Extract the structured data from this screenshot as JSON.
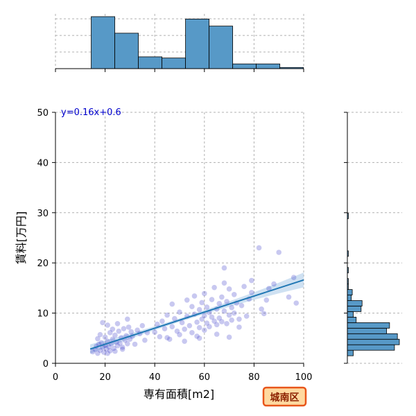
{
  "chart_data": {
    "type": "scatter",
    "xlabel": "専有面積[m2]",
    "ylabel": "賃料[万円]",
    "xlim": [
      0,
      100
    ],
    "ylim": [
      0,
      50
    ],
    "x_ticks": [
      0,
      20,
      40,
      60,
      80,
      100
    ],
    "y_ticks": [
      0,
      10,
      20,
      30,
      40,
      50
    ],
    "grid": true,
    "annotation": "y=0.16x+0.6",
    "badge": "城南区",
    "regression": {
      "slope": 0.16,
      "intercept": 0.6,
      "x_range": [
        14,
        100
      ]
    },
    "colors": {
      "points": "#3a3ac8",
      "line": "#1f77b4",
      "band": "#a8c8e8",
      "hist": "#5799c7",
      "badge_bg": "#ffd9a0",
      "badge_border": "#e8551a"
    },
    "top_histogram": {
      "bin_edges": [
        0,
        14.4,
        23.9,
        33.4,
        42.9,
        52.4,
        61.9,
        71.4,
        80.9,
        90.4,
        99.9
      ],
      "counts": [
        0,
        44,
        30,
        10,
        9,
        42,
        36,
        4,
        4,
        1
      ]
    },
    "right_histogram": {
      "bin_edges": [
        1.5,
        2.6,
        3.7,
        4.8,
        5.9,
        7.0,
        8.1,
        9.2,
        10.3,
        11.4,
        12.5,
        13.6,
        14.7,
        15.8,
        16.9,
        18.0,
        19.1,
        20.2,
        21.3,
        22.4,
        23.5,
        28.8,
        29.9
      ],
      "counts": [
        6,
        48,
        53,
        51,
        40,
        43,
        9,
        6,
        14,
        15,
        4,
        5,
        1,
        1,
        0,
        1,
        0,
        0,
        1,
        0,
        0,
        1
      ]
    },
    "points": [
      [
        15,
        2.3
      ],
      [
        16,
        2.8
      ],
      [
        16.5,
        3.4
      ],
      [
        17,
        2.0
      ],
      [
        17.5,
        3.8
      ],
      [
        18,
        2.6
      ],
      [
        18.5,
        4.1
      ],
      [
        19,
        3.2
      ],
      [
        19.5,
        2.2
      ],
      [
        20,
        3.6
      ],
      [
        20,
        5.2
      ],
      [
        20.5,
        2.9
      ],
      [
        21,
        4.4
      ],
      [
        21.5,
        3.3
      ],
      [
        22,
        2.5
      ],
      [
        22,
        6.1
      ],
      [
        22.5,
        3.9
      ],
      [
        23,
        4.8
      ],
      [
        23.5,
        3.0
      ],
      [
        24,
        5.6
      ],
      [
        24.5,
        4.2
      ],
      [
        25,
        3.5
      ],
      [
        25.5,
        6.4
      ],
      [
        26,
        4.0
      ],
      [
        26.5,
        5.1
      ],
      [
        27,
        3.2
      ],
      [
        27.5,
        6.9
      ],
      [
        28,
        4.6
      ],
      [
        28.5,
        5.5
      ],
      [
        29,
        3.9
      ],
      [
        29.5,
        7.2
      ],
      [
        30,
        4.8
      ],
      [
        30.5,
        6.3
      ],
      [
        31,
        5.4
      ],
      [
        32,
        3.8
      ],
      [
        33,
        6.6
      ],
      [
        34,
        5.9
      ],
      [
        35,
        7.5
      ],
      [
        36,
        4.6
      ],
      [
        37,
        6.1
      ],
      [
        19,
        8.1
      ],
      [
        21,
        7.6
      ],
      [
        23,
        6.8
      ],
      [
        25,
        7.9
      ],
      [
        29,
        8.8
      ],
      [
        18,
        5.7
      ],
      [
        17,
        4.9
      ],
      [
        24,
        2.4
      ],
      [
        21,
        2.0
      ],
      [
        27,
        2.8
      ],
      [
        40,
        6.2
      ],
      [
        41,
        7.8
      ],
      [
        42,
        5.3
      ],
      [
        43,
        8.4
      ],
      [
        44,
        6.9
      ],
      [
        45,
        5.1
      ],
      [
        45,
        9.6
      ],
      [
        46,
        4.8
      ],
      [
        47,
        7.3
      ],
      [
        47,
        11.8
      ],
      [
        48,
        8.9
      ],
      [
        49,
        6.4
      ],
      [
        50,
        10.2
      ],
      [
        50,
        5.7
      ],
      [
        51,
        8.1
      ],
      [
        52,
        6.8
      ],
      [
        53,
        9.4
      ],
      [
        53,
        12.6
      ],
      [
        54,
        7.5
      ],
      [
        55,
        11.3
      ],
      [
        55,
        6.1
      ],
      [
        56,
        9.8
      ],
      [
        56,
        13.4
      ],
      [
        57,
        8.2
      ],
      [
        57,
        5.4
      ],
      [
        58,
        10.7
      ],
      [
        58,
        7.1
      ],
      [
        59,
        12.1
      ],
      [
        59,
        8.8
      ],
      [
        60,
        9.5
      ],
      [
        60,
        6.6
      ],
      [
        60,
        13.9
      ],
      [
        61,
        11.2
      ],
      [
        61,
        8.0
      ],
      [
        62,
        10.1
      ],
      [
        62,
        7.3
      ],
      [
        63,
        12.7
      ],
      [
        63,
        9.2
      ],
      [
        64,
        8.4
      ],
      [
        64,
        15.1
      ],
      [
        65,
        10.8
      ],
      [
        65,
        7.7
      ],
      [
        66,
        11.9
      ],
      [
        66,
        9.0
      ],
      [
        67,
        8.3
      ],
      [
        67,
        13.2
      ],
      [
        68,
        10.4
      ],
      [
        68,
        16.0
      ],
      [
        69,
        7.9
      ],
      [
        69,
        12.3
      ],
      [
        70,
        9.6
      ],
      [
        70,
        14.8
      ],
      [
        71,
        11.1
      ],
      [
        71,
        8.6
      ],
      [
        72,
        13.7
      ],
      [
        72,
        10.0
      ],
      [
        73,
        12.0
      ],
      [
        74,
        8.8
      ],
      [
        75,
        11.5
      ],
      [
        76,
        15.3
      ],
      [
        77,
        9.4
      ],
      [
        78,
        12.8
      ],
      [
        79,
        14.1
      ],
      [
        82,
        23.0
      ],
      [
        83,
        10.8
      ],
      [
        84,
        9.9
      ],
      [
        85,
        12.6
      ],
      [
        86,
        14.9
      ],
      [
        88,
        15.8
      ],
      [
        90,
        22.1
      ],
      [
        94,
        13.2
      ],
      [
        96,
        17.1
      ],
      [
        97,
        12.0
      ],
      [
        70,
        5.2
      ],
      [
        65,
        5.8
      ],
      [
        58,
        5.0
      ],
      [
        52,
        4.4
      ],
      [
        68,
        19.0
      ],
      [
        74,
        7.2
      ],
      [
        79,
        16.5
      ]
    ]
  }
}
